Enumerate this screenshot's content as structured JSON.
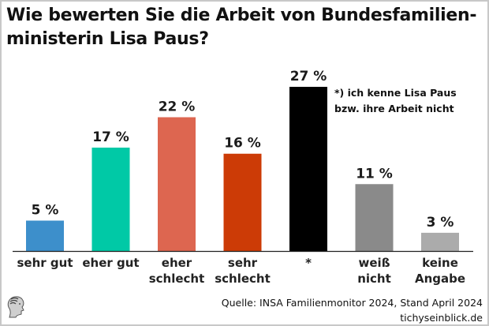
{
  "chart_data": {
    "type": "bar",
    "title": "Wie bewerten Sie die Arbeit von Bundesfamilien-ministerin Lisa Paus?",
    "title_lines": [
      "Wie bewerten Sie die Arbeit von Bundesfamilien-",
      "ministerin Lisa Paus?"
    ],
    "categories": [
      "sehr gut",
      "eher gut",
      "eher schlecht",
      "sehr schlecht",
      "*",
      "weiß nicht",
      "keine Angabe"
    ],
    "category_lines": [
      [
        "sehr gut"
      ],
      [
        "eher gut"
      ],
      [
        "eher",
        "schlecht"
      ],
      [
        "sehr",
        "schlecht"
      ],
      [
        "*"
      ],
      [
        "weiß",
        "nicht"
      ],
      [
        "keine",
        "Angabe"
      ]
    ],
    "values": [
      5,
      17,
      22,
      16,
      27,
      11,
      3
    ],
    "value_labels": [
      "5 %",
      "17 %",
      "22 %",
      "16 %",
      "27 %",
      "11 %",
      "3 %"
    ],
    "colors": [
      "#3d8fcb",
      "#00c9a6",
      "#dd6650",
      "#cc3b06",
      "#000000",
      "#8a8a8a",
      "#ababab"
    ],
    "unit": "%",
    "xlabel": "",
    "ylabel": "",
    "ylim": [
      0,
      27
    ],
    "grid": false,
    "legend": "none",
    "annotation": [
      "*) ich kenne Lisa Paus",
      "bzw. ihre Arbeit nicht"
    ]
  },
  "footer": {
    "source": "Quelle: INSA Familienmonitor 2024, Stand April 2024",
    "site": "tichyseinblick.de",
    "logo_icon": "classical-head-logo-icon"
  }
}
